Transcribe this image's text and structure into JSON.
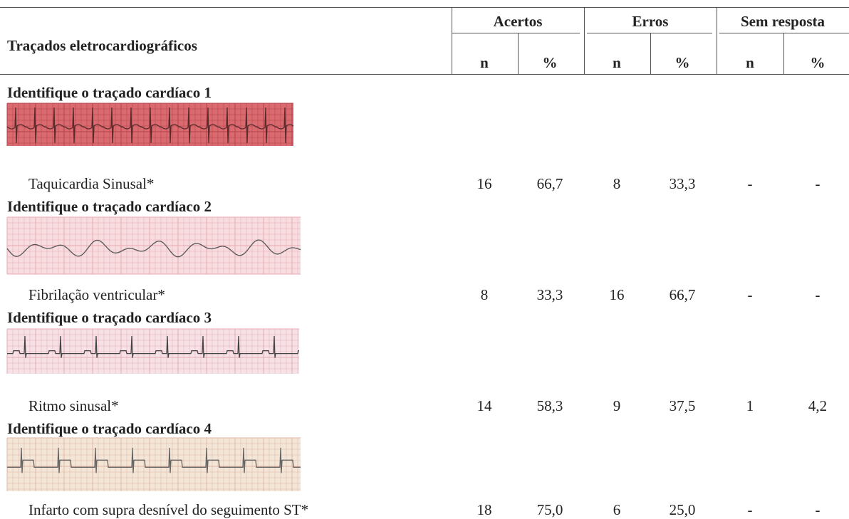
{
  "header": {
    "row_label": "Traçados eletrocardiográficos",
    "groups": [
      "Acertos",
      "Erros",
      "Sem resposta"
    ],
    "subcolumns": [
      "n",
      "%",
      "n",
      "%",
      "n",
      "%"
    ]
  },
  "sections": [
    {
      "title": "Identifique o traçado cardíaco 1",
      "label": "Taquicardia Sinusal*",
      "cells": [
        "16",
        "66,7",
        "8",
        "33,3",
        "-",
        "-"
      ]
    },
    {
      "title": "Identifique o traçado cardíaco 2",
      "label": "Fibrilação ventricular*",
      "cells": [
        "8",
        "33,3",
        "16",
        "66,7",
        "-",
        "-"
      ]
    },
    {
      "title": "Identifique o traçado cardíaco 3",
      "label": "Ritmo sinusal*",
      "cells": [
        "14",
        "58,3",
        "9",
        "37,5",
        "1",
        "4,2"
      ]
    },
    {
      "title": "Identifique o traçado cardíaco 4",
      "label": "Infarto com supra desnível do seguimento ST*",
      "cells": [
        "18",
        "75,0",
        "6",
        "25,0",
        "-",
        "-"
      ]
    }
  ]
}
